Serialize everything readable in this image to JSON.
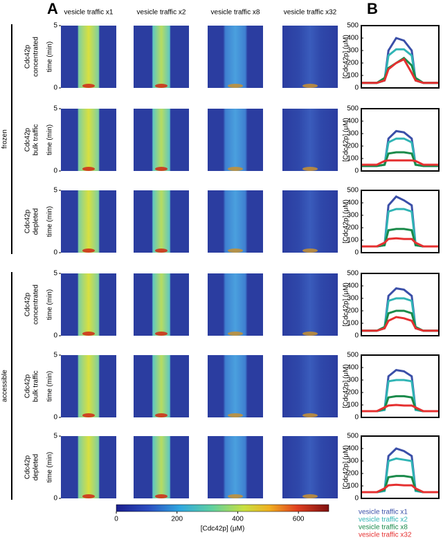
{
  "figure": {
    "panels": [
      "A",
      "B"
    ],
    "columns": [
      "vesicle traffic x1",
      "vesicle traffic x2",
      "vesicle traffic x8",
      "vesicle traffic x32"
    ],
    "groups": [
      {
        "label": "frozen"
      },
      {
        "label": "accessible"
      }
    ],
    "rows": [
      [
        "Cdc42p",
        "concentrated"
      ],
      [
        "Cdc42p",
        "bulk traffic"
      ],
      [
        "Cdc42p",
        "depleted"
      ],
      [
        "Cdc42p",
        "concentrated"
      ],
      [
        "Cdc42p",
        "bulk traffic"
      ],
      [
        "Cdc42p",
        "depleted"
      ]
    ],
    "time_axis": {
      "label": "time (min)",
      "lim": [
        0,
        5
      ],
      "ticks": [
        0,
        5
      ]
    },
    "colorbar": {
      "label": "[Cdc42p] (μM)",
      "lim": [
        0,
        700
      ],
      "ticks": [
        0,
        200,
        400,
        600
      ]
    },
    "legend": [
      {
        "name": "vesicle traffic x1",
        "color": "#3a4fa8"
      },
      {
        "name": "vesicle traffic x2",
        "color": "#30b5b5"
      },
      {
        "name": "vesicle traffic x8",
        "color": "#1a8a4a"
      },
      {
        "name": "vesicle traffic x32",
        "color": "#e53030"
      }
    ]
  },
  "chart_data": [
    {
      "type": "line",
      "ylabel": "[Cdc42p] (μM)",
      "ylim": [
        0,
        500
      ],
      "yticks": [
        0,
        100,
        200,
        300,
        400,
        500
      ],
      "xlim": [
        0,
        1
      ],
      "x": [
        0,
        0.2,
        0.3,
        0.35,
        0.45,
        0.55,
        0.65,
        0.7,
        0.8,
        1
      ],
      "series": [
        {
          "color": "#3a4fa8",
          "values": [
            40,
            40,
            60,
            300,
            400,
            380,
            300,
            60,
            40,
            40
          ]
        },
        {
          "color": "#30b5b5",
          "values": [
            40,
            40,
            60,
            260,
            310,
            310,
            260,
            60,
            40,
            40
          ]
        },
        {
          "color": "#1a8a4a",
          "values": [
            40,
            40,
            80,
            160,
            200,
            240,
            180,
            80,
            40,
            40
          ]
        },
        {
          "color": "#e53030",
          "values": [
            40,
            40,
            60,
            150,
            200,
            230,
            120,
            60,
            40,
            40
          ]
        }
      ]
    },
    {
      "type": "line",
      "ylabel": "[Cdc42p] (μM)",
      "ylim": [
        0,
        500
      ],
      "yticks": [
        0,
        100,
        200,
        300,
        400,
        500
      ],
      "xlim": [
        0,
        1
      ],
      "x": [
        0,
        0.2,
        0.3,
        0.35,
        0.45,
        0.55,
        0.65,
        0.7,
        0.8,
        1
      ],
      "series": [
        {
          "color": "#3a4fa8",
          "values": [
            40,
            40,
            50,
            260,
            320,
            310,
            260,
            50,
            40,
            40
          ]
        },
        {
          "color": "#30b5b5",
          "values": [
            40,
            40,
            50,
            230,
            260,
            260,
            230,
            50,
            40,
            40
          ]
        },
        {
          "color": "#1a8a4a",
          "values": [
            40,
            40,
            50,
            140,
            150,
            150,
            140,
            50,
            40,
            40
          ]
        },
        {
          "color": "#e53030",
          "values": [
            50,
            50,
            80,
            85,
            85,
            85,
            85,
            80,
            50,
            50
          ]
        }
      ]
    },
    {
      "type": "line",
      "ylabel": "[Cdc42p] (μM)",
      "ylim": [
        0,
        500
      ],
      "yticks": [
        0,
        100,
        200,
        300,
        400,
        500
      ],
      "xlim": [
        0,
        1
      ],
      "x": [
        0,
        0.2,
        0.3,
        0.35,
        0.45,
        0.55,
        0.65,
        0.7,
        0.8,
        1
      ],
      "series": [
        {
          "color": "#3a4fa8",
          "values": [
            50,
            50,
            60,
            380,
            450,
            420,
            380,
            60,
            50,
            50
          ]
        },
        {
          "color": "#30b5b5",
          "values": [
            50,
            50,
            60,
            330,
            350,
            350,
            330,
            60,
            50,
            50
          ]
        },
        {
          "color": "#1a8a4a",
          "values": [
            50,
            50,
            60,
            180,
            190,
            190,
            180,
            60,
            50,
            50
          ]
        },
        {
          "color": "#e53030",
          "values": [
            50,
            50,
            80,
            110,
            115,
            110,
            110,
            80,
            50,
            50
          ]
        }
      ]
    },
    {
      "type": "line",
      "ylabel": "[Cdc42p] (μM)",
      "ylim": [
        0,
        500
      ],
      "yticks": [
        0,
        100,
        200,
        300,
        400,
        500
      ],
      "xlim": [
        0,
        1
      ],
      "x": [
        0,
        0.2,
        0.3,
        0.35,
        0.45,
        0.55,
        0.65,
        0.7,
        0.8,
        1
      ],
      "series": [
        {
          "color": "#3a4fa8",
          "values": [
            40,
            40,
            60,
            320,
            380,
            370,
            320,
            60,
            40,
            40
          ]
        },
        {
          "color": "#30b5b5",
          "values": [
            40,
            40,
            60,
            280,
            300,
            300,
            280,
            60,
            40,
            40
          ]
        },
        {
          "color": "#1a8a4a",
          "values": [
            40,
            40,
            70,
            180,
            200,
            200,
            180,
            70,
            40,
            40
          ]
        },
        {
          "color": "#e53030",
          "values": [
            40,
            40,
            60,
            120,
            150,
            140,
            120,
            60,
            40,
            40
          ]
        }
      ]
    },
    {
      "type": "line",
      "ylabel": "[Cdc42p] (μM)",
      "ylim": [
        0,
        500
      ],
      "yticks": [
        0,
        100,
        200,
        300,
        400,
        500
      ],
      "xlim": [
        0,
        1
      ],
      "x": [
        0,
        0.2,
        0.3,
        0.35,
        0.45,
        0.55,
        0.65,
        0.7,
        0.8,
        1
      ],
      "series": [
        {
          "color": "#3a4fa8",
          "values": [
            50,
            50,
            60,
            330,
            380,
            370,
            330,
            60,
            50,
            50
          ]
        },
        {
          "color": "#30b5b5",
          "values": [
            50,
            50,
            60,
            290,
            300,
            300,
            290,
            60,
            50,
            50
          ]
        },
        {
          "color": "#1a8a4a",
          "values": [
            50,
            50,
            70,
            160,
            170,
            170,
            160,
            70,
            50,
            50
          ]
        },
        {
          "color": "#e53030",
          "values": [
            50,
            50,
            80,
            95,
            100,
            95,
            95,
            80,
            50,
            50
          ]
        }
      ]
    },
    {
      "type": "line",
      "ylabel": "[Cdc42p] (μM)",
      "ylim": [
        0,
        500
      ],
      "yticks": [
        0,
        100,
        200,
        300,
        400,
        500
      ],
      "xlim": [
        0,
        1
      ],
      "x": [
        0,
        0.2,
        0.3,
        0.35,
        0.45,
        0.55,
        0.65,
        0.7,
        0.8,
        1
      ],
      "series": [
        {
          "color": "#3a4fa8",
          "values": [
            50,
            50,
            60,
            340,
            400,
            380,
            340,
            60,
            50,
            50
          ]
        },
        {
          "color": "#30b5b5",
          "values": [
            50,
            50,
            60,
            300,
            320,
            310,
            300,
            60,
            50,
            50
          ]
        },
        {
          "color": "#1a8a4a",
          "values": [
            50,
            50,
            70,
            170,
            180,
            180,
            170,
            70,
            50,
            50
          ]
        },
        {
          "color": "#e53030",
          "values": [
            50,
            50,
            80,
            105,
            110,
            105,
            105,
            80,
            50,
            50
          ]
        }
      ]
    }
  ]
}
